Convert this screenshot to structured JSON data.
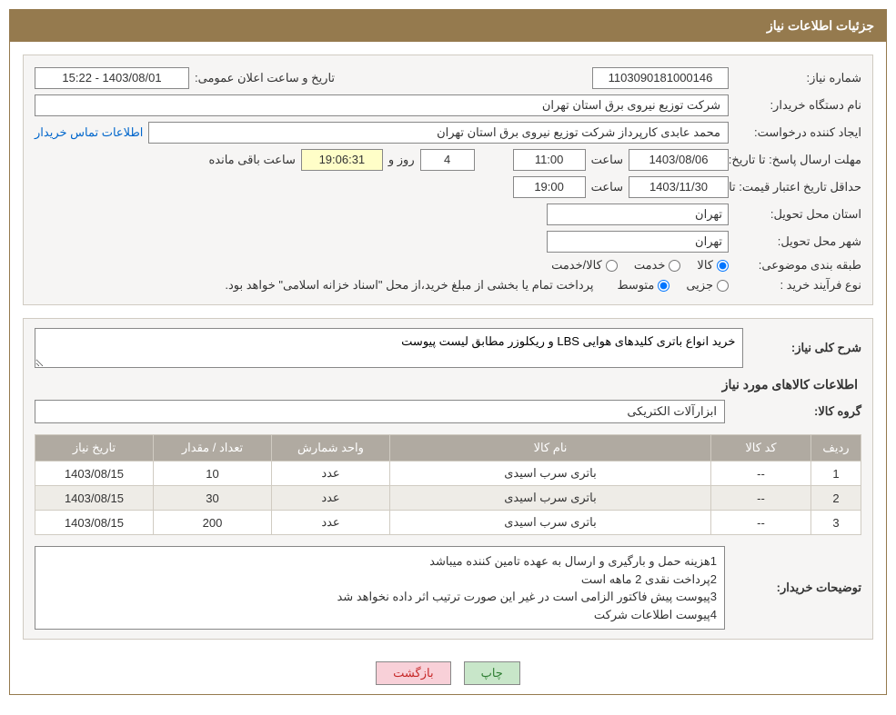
{
  "header_title": "جزئیات اطلاعات نیاز",
  "fields": {
    "need_no_label": "شماره نیاز:",
    "need_no": "1103090181000146",
    "announce_label": "تاریخ و ساعت اعلان عمومی:",
    "announce_value": "1403/08/01 - 15:22",
    "buyer_org_label": "نام دستگاه خریدار:",
    "buyer_org": "شرکت توزیع نیروی برق استان تهران",
    "requester_label": "ایجاد کننده درخواست:",
    "requester": "محمد عابدی کارپرداز شرکت توزیع نیروی برق استان تهران",
    "contact_link": "اطلاعات تماس خریدار",
    "deadline_label": "مهلت ارسال پاسخ:",
    "until_date_label": "تا تاریخ:",
    "deadline_date": "1403/08/06",
    "time_label": "ساعت",
    "deadline_time": "11:00",
    "days": "4",
    "days_and_label": "روز و",
    "countdown": "19:06:31",
    "remaining_label": "ساعت باقی مانده",
    "validity_label": "حداقل تاریخ اعتبار قیمت:",
    "validity_date": "1403/11/30",
    "validity_time": "19:00",
    "province_label": "استان محل تحویل:",
    "province": "تهران",
    "city_label": "شهر محل تحویل:",
    "city": "تهران",
    "classify_label": "طبقه بندی موضوعی:",
    "radio_goods": "کالا",
    "radio_service": "خدمت",
    "radio_both": "کالا/خدمت",
    "process_label": "نوع فرآیند خرید :",
    "radio_minor": "جزیی",
    "radio_medium": "متوسط",
    "process_note": "پرداخت تمام یا بخشی از مبلغ خرید،از محل \"اسناد خزانه اسلامی\" خواهد بود."
  },
  "need_section": {
    "desc_label": "شرح کلی نیاز:",
    "description": "خرید انواع باتری کلیدهای هوایی LBS و ریکلوزر مطابق لیست پیوست",
    "items_title": "اطلاعات کالاهای مورد نیاز",
    "group_label": "گروه کالا:",
    "group_value": "ابزارآلات الکتریکی"
  },
  "table": {
    "headers": [
      "ردیف",
      "کد کالا",
      "نام کالا",
      "واحد شمارش",
      "تعداد / مقدار",
      "تاریخ نیاز"
    ],
    "rows": [
      [
        "1",
        "--",
        "باتری سرب اسیدی",
        "عدد",
        "10",
        "1403/08/15"
      ],
      [
        "2",
        "--",
        "باتری سرب اسیدی",
        "عدد",
        "30",
        "1403/08/15"
      ],
      [
        "3",
        "--",
        "باتری سرب اسیدی",
        "عدد",
        "200",
        "1403/08/15"
      ]
    ]
  },
  "buyer_notes": {
    "label": "توضیحات خریدار:",
    "line1": "1هزینه حمل و بارگیری و ارسال به عهده تامین کننده میباشد",
    "line2": "2پرداخت نقدی 2 ماهه است",
    "line3": "3پیوست پیش فاکتور الزامی است در غیر این صورت ترتیب اثر داده نخواهد شد",
    "line4": "4پیوست اطلاعات شرکت"
  },
  "buttons": {
    "print": "چاپ",
    "back": "بازگشت"
  }
}
